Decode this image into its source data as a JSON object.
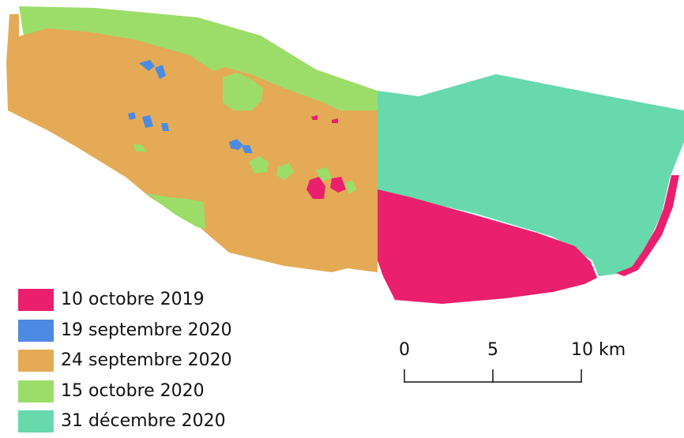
{
  "legend": {
    "items": [
      {
        "label": "10 octobre 2019",
        "color": "#ea1f6d"
      },
      {
        "label": "19 septembre 2020",
        "color": "#4d8ae3"
      },
      {
        "label": "24 septembre 2020",
        "color": "#e4aa56"
      },
      {
        "label": "15 octobre 2020",
        "color": "#9cdd69"
      },
      {
        "label": "31 décembre 2020",
        "color": "#67d9ad"
      }
    ]
  },
  "scale_bar": {
    "labels": [
      "0",
      "5",
      "10 km"
    ]
  }
}
